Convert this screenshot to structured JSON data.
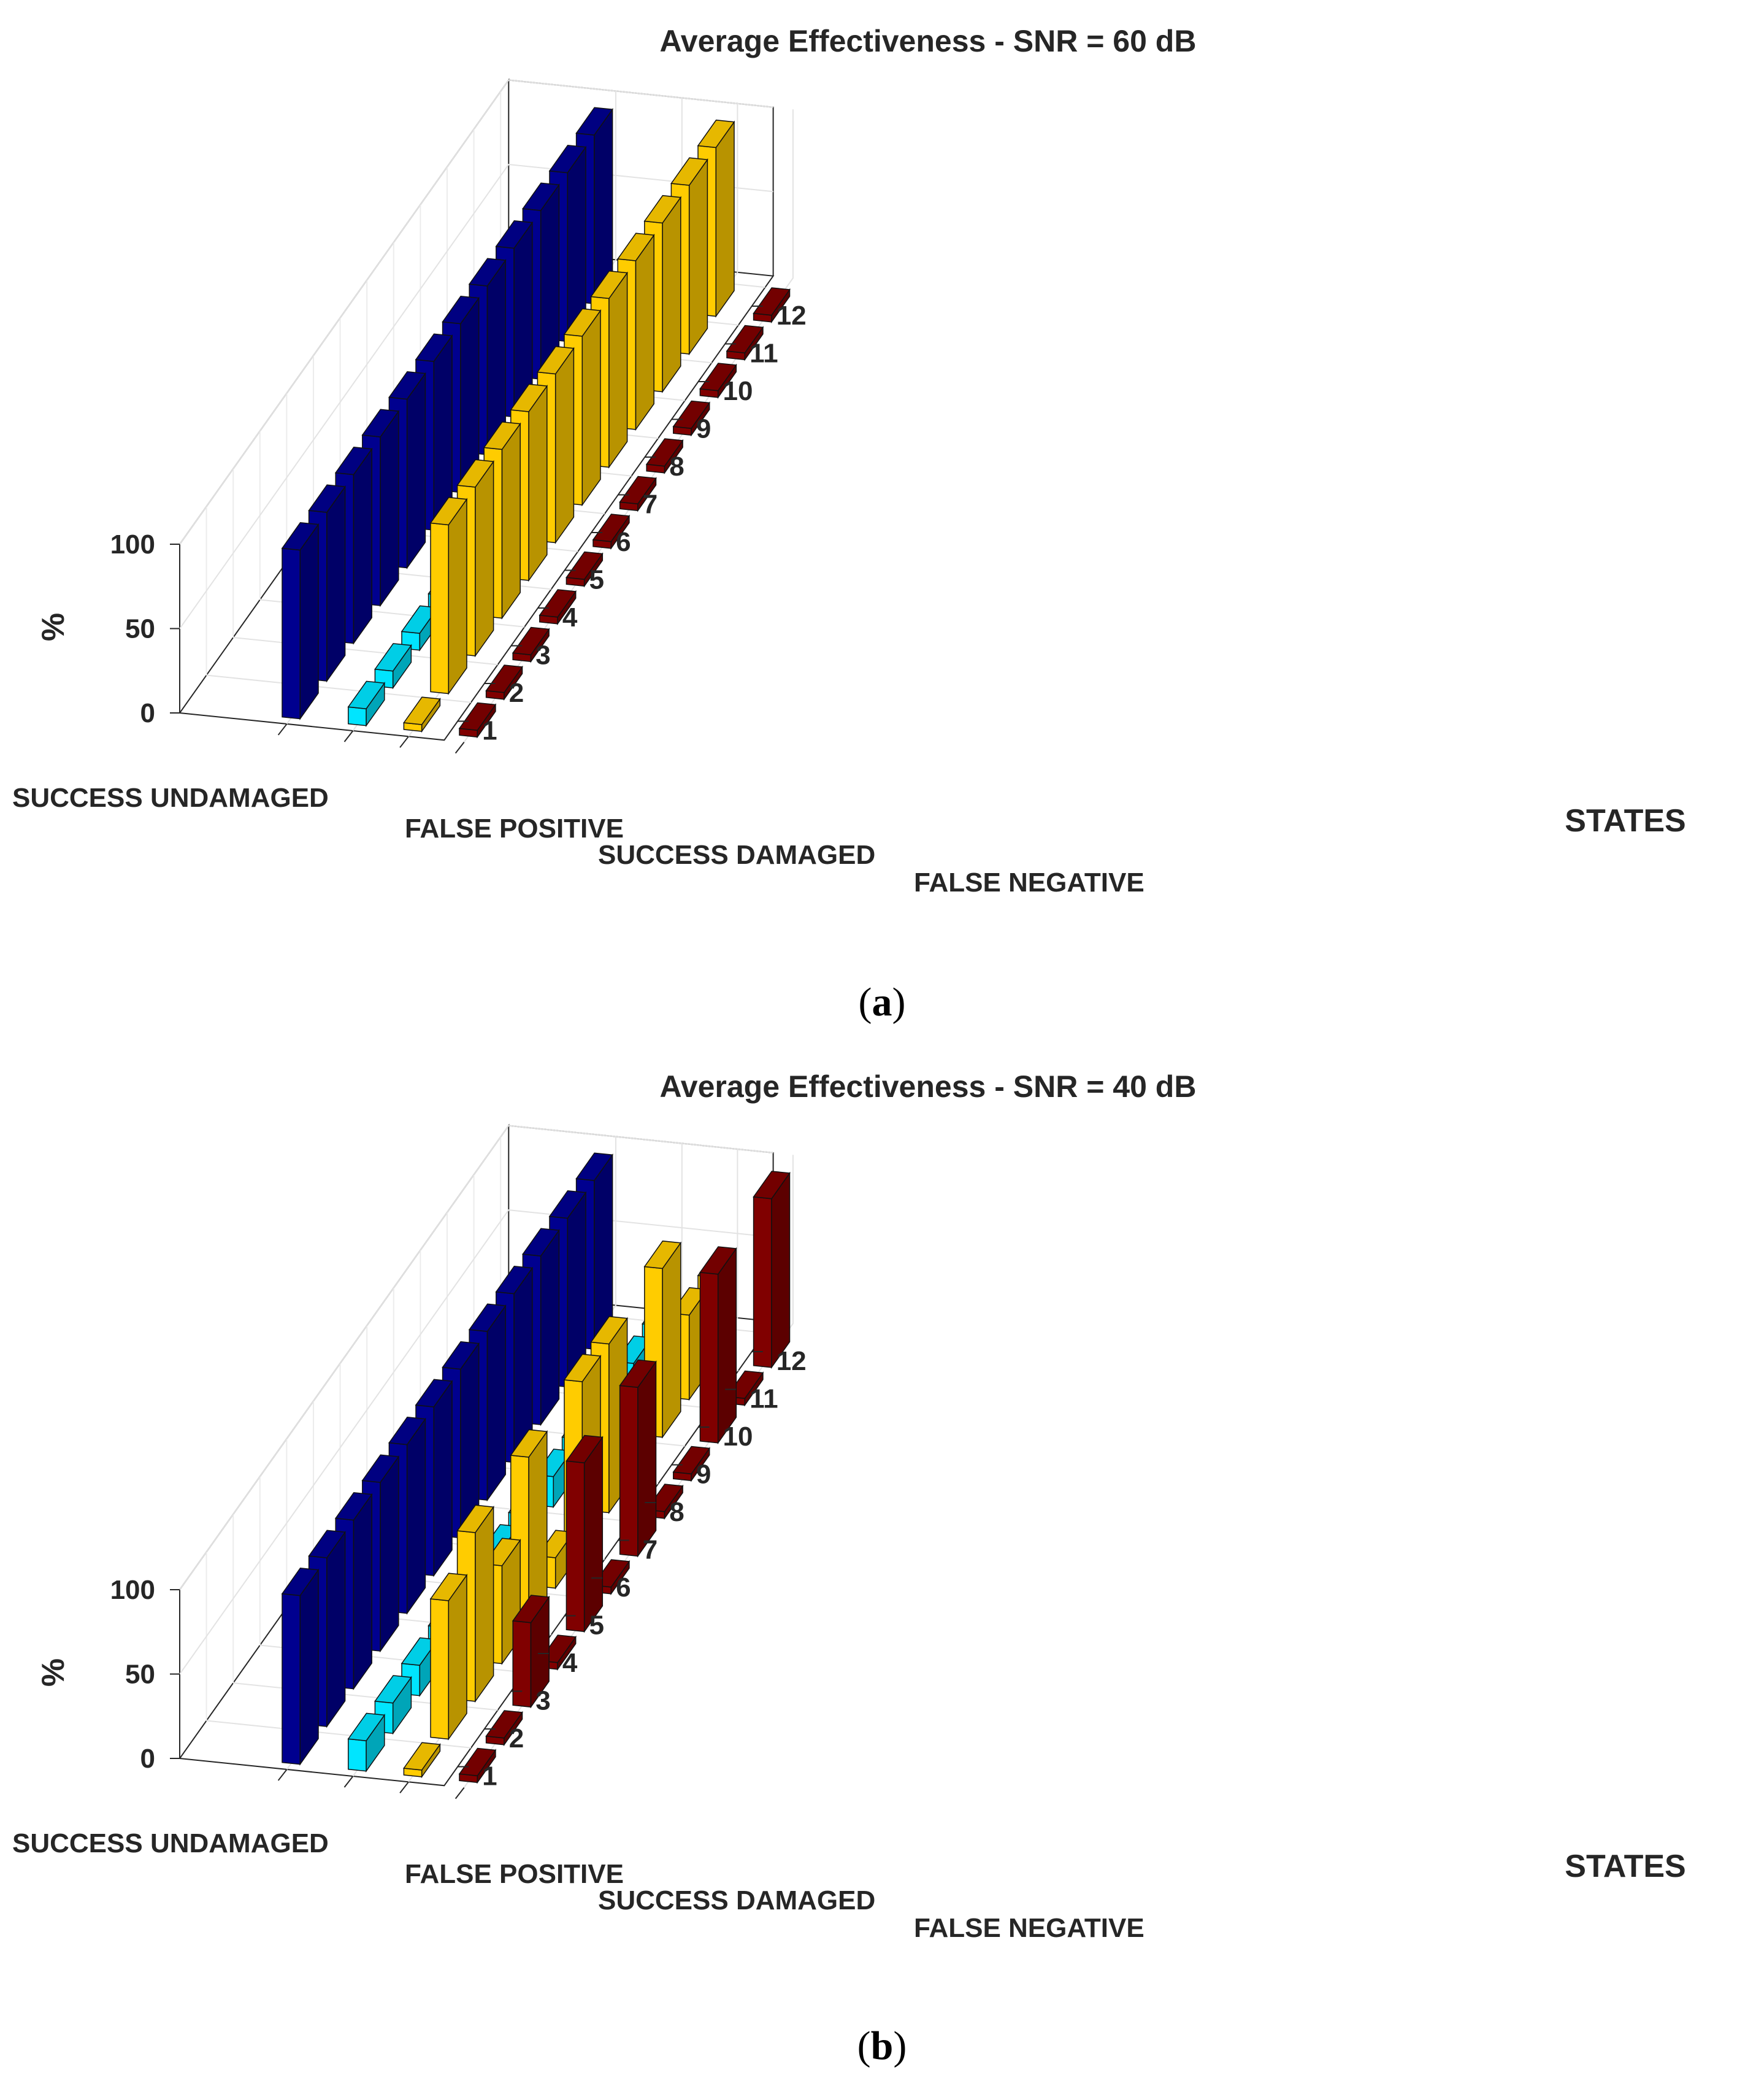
{
  "figure": {
    "xlabel": "STATES",
    "ylabel": "%",
    "categories": [
      "SUCCESS UNDAMAGED",
      "FALSE POSITIVE",
      "SUCCESS DAMAGED",
      "FALSE NEGATIVE"
    ],
    "states": [
      "1",
      "2",
      "3",
      "4",
      "5",
      "6",
      "7",
      "8",
      "9",
      "10",
      "11",
      "12"
    ],
    "z_ticks": [
      "0",
      "50",
      "100"
    ],
    "colors": {
      "SUCCESS UNDAMAGED": "#00008f",
      "FALSE POSITIVE": "#00e5ff",
      "SUCCESS DAMAGED": "#ffcc00",
      "FALSE NEGATIVE": "#800000"
    }
  },
  "chart_data": [
    {
      "type": "bar3d",
      "panel_label": "a",
      "title": "Average Effectiveness - SNR = 60 dB",
      "xlabel": "STATES",
      "zlabel": "%",
      "zlim": [
        0,
        100
      ],
      "categories": [
        "SUCCESS UNDAMAGED",
        "FALSE POSITIVE",
        "SUCCESS DAMAGED",
        "FALSE NEGATIVE"
      ],
      "x": [
        1,
        2,
        3,
        4,
        5,
        6,
        7,
        8,
        9,
        10,
        11,
        12
      ],
      "series": [
        {
          "name": "SUCCESS UNDAMAGED",
          "values": [
            100,
            100,
            100,
            100,
            100,
            100,
            100,
            100,
            100,
            100,
            100,
            100
          ]
        },
        {
          "name": "FALSE POSITIVE",
          "values": [
            10,
            10,
            10,
            10,
            10,
            10,
            10,
            10,
            10,
            10,
            10,
            10
          ]
        },
        {
          "name": "SUCCESS DAMAGED",
          "values": [
            0,
            100,
            100,
            100,
            100,
            100,
            100,
            100,
            100,
            100,
            100,
            100
          ]
        },
        {
          "name": "FALSE NEGATIVE",
          "values": [
            0,
            0,
            0,
            0,
            0,
            0,
            0,
            0,
            0,
            0,
            0,
            0
          ]
        }
      ]
    },
    {
      "type": "bar3d",
      "panel_label": "b",
      "title": "Average Effectiveness - SNR = 40 dB",
      "xlabel": "STATES",
      "zlabel": "%",
      "zlim": [
        0,
        100
      ],
      "categories": [
        "SUCCESS UNDAMAGED",
        "FALSE POSITIVE",
        "SUCCESS DAMAGED",
        "FALSE NEGATIVE"
      ],
      "x": [
        1,
        2,
        3,
        4,
        5,
        6,
        7,
        8,
        9,
        10,
        11,
        12
      ],
      "series": [
        {
          "name": "SUCCESS UNDAMAGED",
          "values": [
            100,
            100,
            100,
            100,
            100,
            100,
            100,
            100,
            100,
            100,
            100,
            100
          ]
        },
        {
          "name": "FALSE POSITIVE",
          "values": [
            18,
            18,
            18,
            18,
            18,
            18,
            18,
            18,
            18,
            18,
            18,
            18
          ]
        },
        {
          "name": "SUCCESS DAMAGED",
          "values": [
            0,
            82,
            100,
            58,
            100,
            18,
            100,
            100,
            15,
            100,
            50,
            50
          ]
        },
        {
          "name": "FALSE NEGATIVE",
          "values": [
            0,
            0,
            50,
            0,
            100,
            0,
            100,
            0,
            0,
            100,
            0,
            100
          ]
        }
      ]
    }
  ]
}
